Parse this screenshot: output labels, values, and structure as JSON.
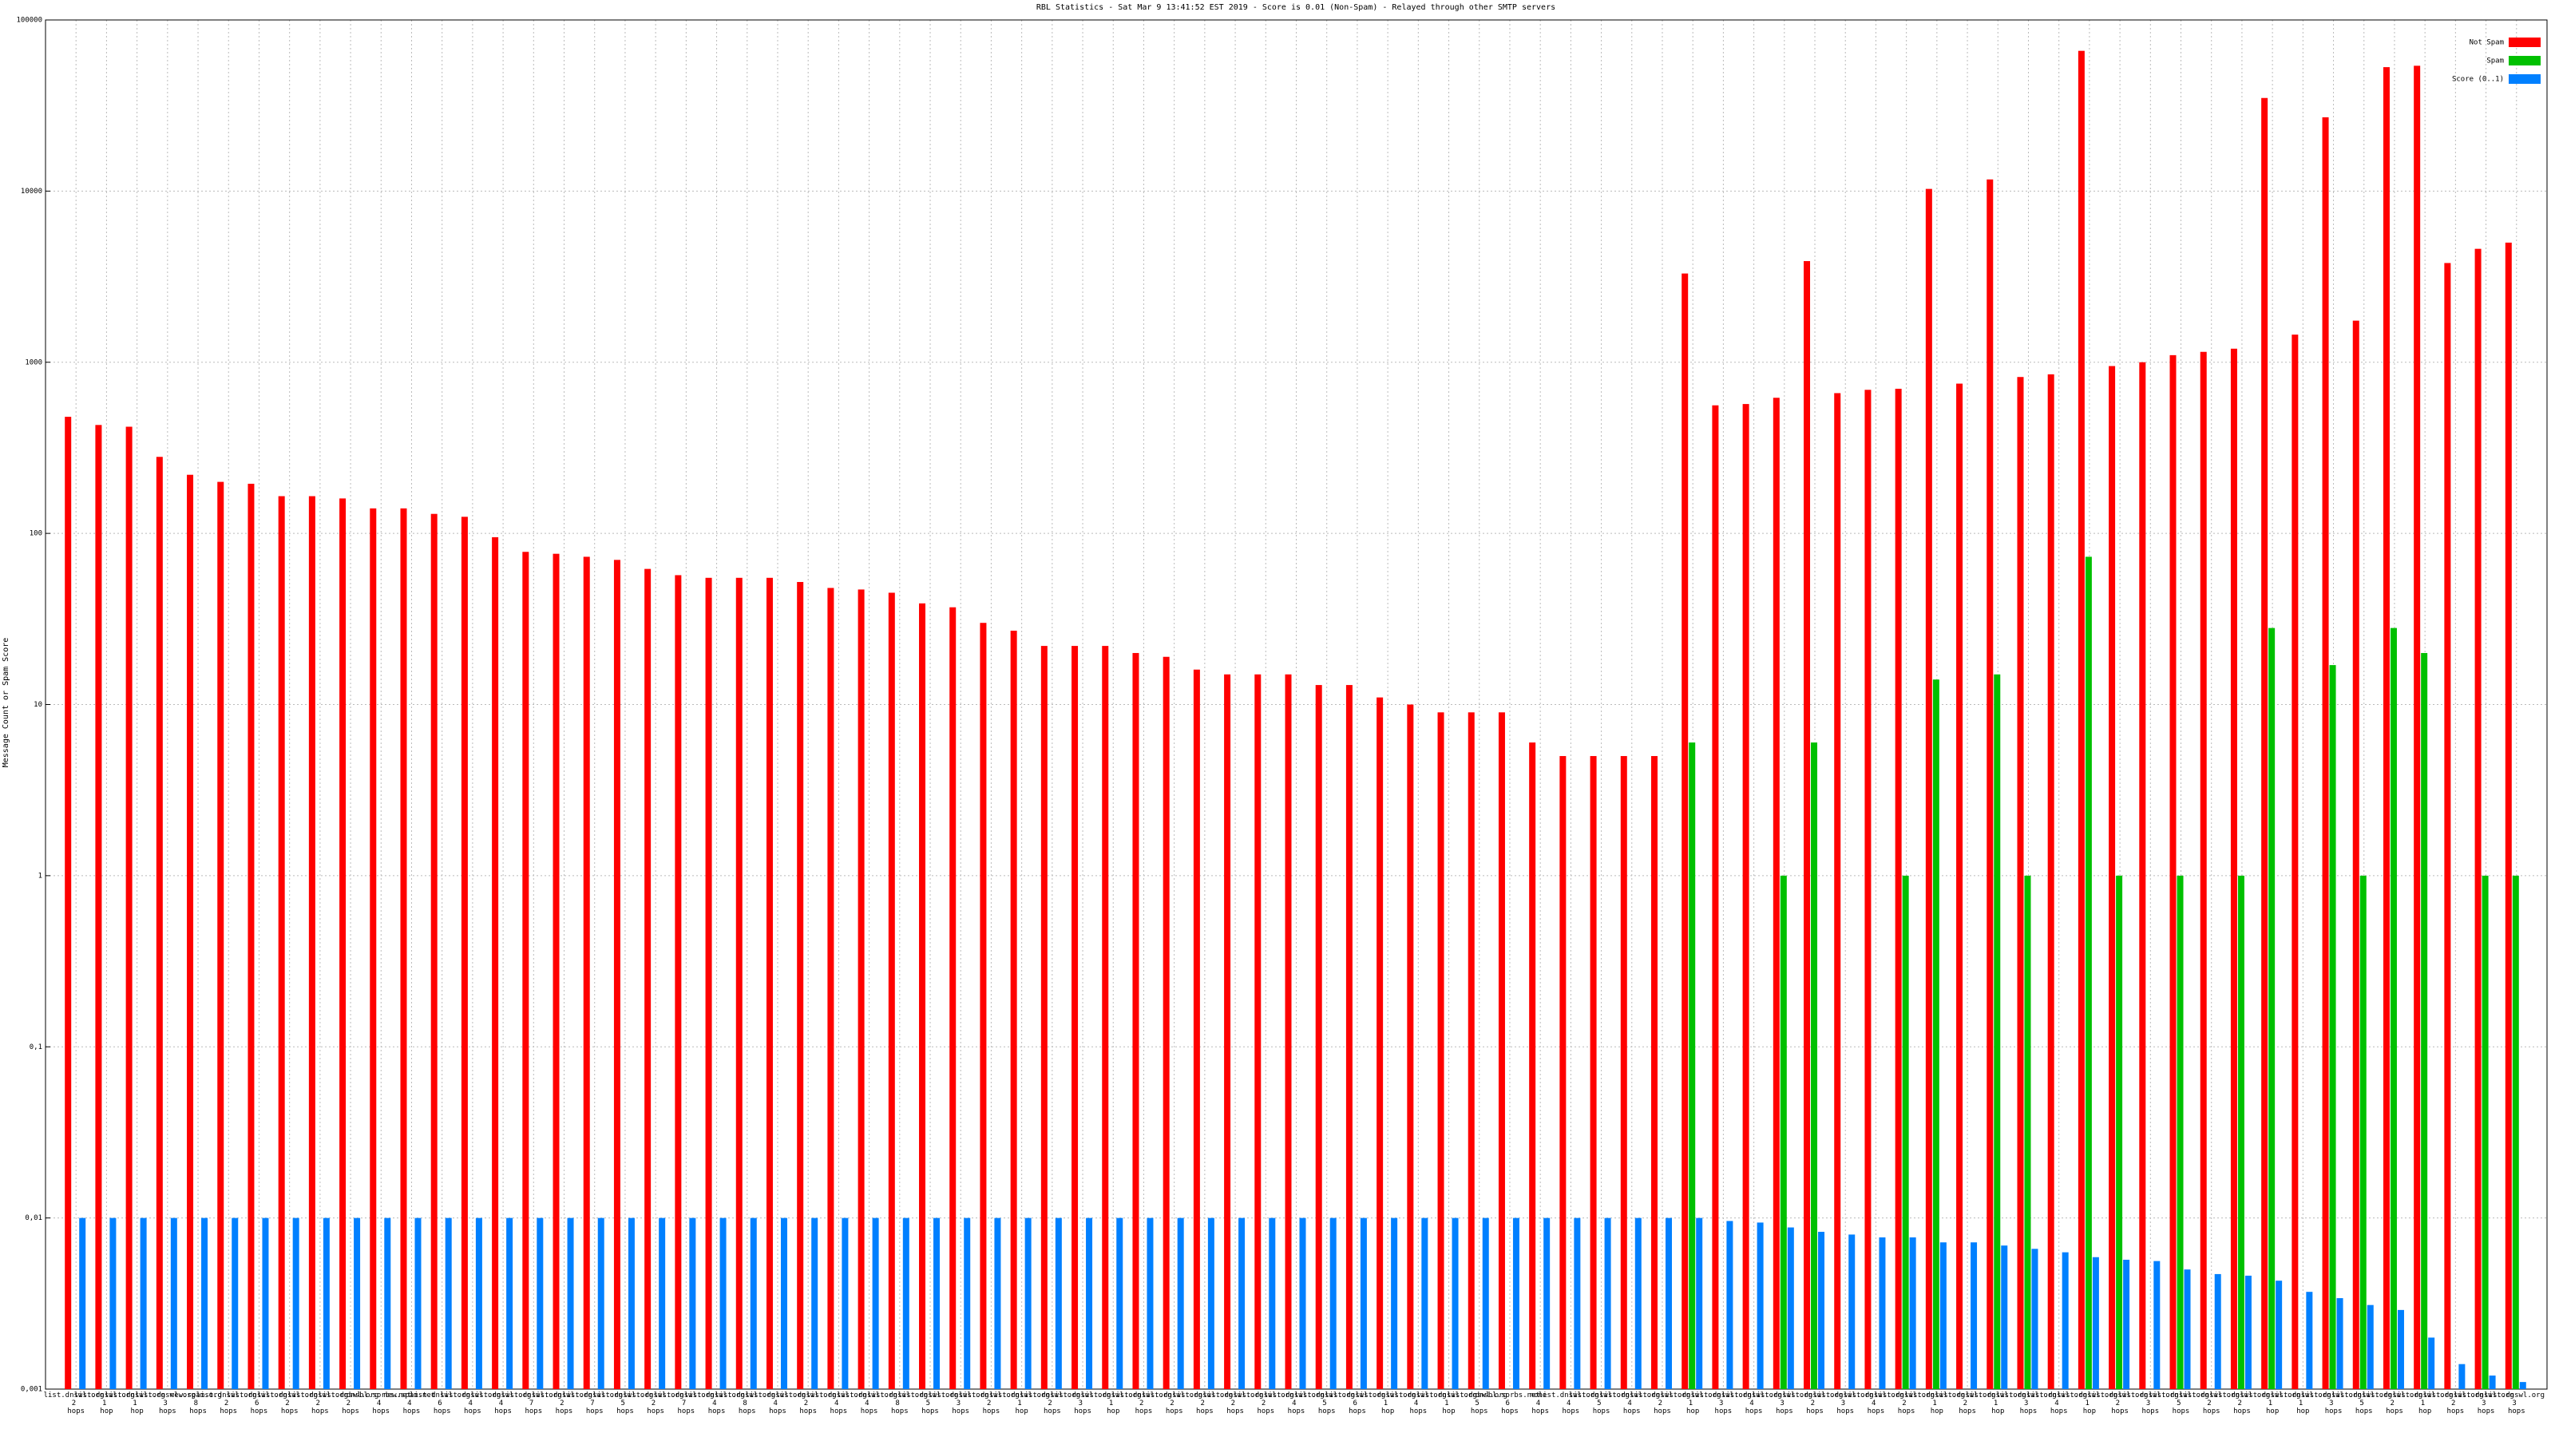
{
  "chart_data": {
    "type": "bar",
    "log_scale": true,
    "grid": true,
    "legend_position": "top-right",
    "title": "RBL Statistics - Sat Mar  9 13:41:52 EST 2019 - Score is 0.01 (Non-Spam) - Relayed through other SMTP servers",
    "y_label": "Message Count or Spam Score",
    "ylim": [
      0.001,
      100000
    ],
    "yticks": [
      {
        "value": 0.001,
        "label": "0,001"
      },
      {
        "value": 0.01,
        "label": "0,01"
      },
      {
        "value": 0.1,
        "label": "0,1"
      },
      1,
      10,
      100,
      1000,
      10000,
      100000
    ],
    "categories": [
      "list.dnswl.org 2 hops",
      "list.dnswl.org 1 hop",
      "list.dnswl.org 1 hop",
      "list.dnswl.org 3 hops",
      "new.spam.org 8 hops",
      "list.dnswl.org 2 hops",
      "list.dnswl.org 6 hops",
      "list.dnswl.org 2 hops",
      "list.dnswl.org 2 hops",
      "list.dnswl.org 2 hops",
      "dnsbl.sorbs.net 4 hops",
      "new.spam.net 4 hops",
      "list.dnswl.org 6 hops",
      "list.dnswl.org 4 hops",
      "list.dnswl.org 4 hops",
      "list.dnswl.org 7 hops",
      "list.dnswl.org 2 hops",
      "list.dnswl.org 7 hops",
      "list.dnswl.org 5 hops",
      "list.dnswl.org 2 hops",
      "list.dnswl.org 7 hops",
      "list.dnswl.org 4 hops",
      "list.dnswl.org 8 hops",
      "list.dnswl.org 4 hops",
      "list.dnswl.org 2 hops",
      "list.dnswl.org 4 hops",
      "list.dnswl.org 4 hops",
      "list.dnswl.org 8 hops",
      "list.dnswl.org 5 hops",
      "list.dnswl.org 3 hops",
      "list.dnswl.org 2 hops",
      "list.dnswl.org 1 hop",
      "list.dnswl.org 2 hops",
      "list.dnswl.org 3 hops",
      "list.dnswl.org 1 hop",
      "list.dnswl.org 2 hops",
      "list.dnswl.org 2 hops",
      "list.dnswl.org 2 hops",
      "list.dnswl.org 2 hops",
      "list.dnswl.org 2 hops",
      "list.dnswl.org 4 hops",
      "list.dnswl.org 5 hops",
      "list.dnswl.org 6 hops",
      "list.dnswl.org 1 hop",
      "list.dnswl.org 4 hops",
      "list.dnswl.org 1 hop",
      "list.dnswl.org 5 hops",
      "dnsbl.sorbs.net 6 hops",
      "none 4 hops",
      "list.dnswl.org 4 hops",
      "list.dnswl.org 5 hops",
      "list.dnswl.org 4 hops",
      "list.dnswl.org 2 hops",
      "list.dnswl.org 1 hop",
      "list.dnswl.org 3 hops",
      "list.dnswl.org 4 hops",
      "list.dnswl.org 3 hops",
      "list.dnswl.org 2 hops",
      "list.dnswl.org 3 hops",
      "list.dnswl.org 4 hops",
      "list.dnswl.org 2 hops",
      "list.dnswl.org 1 hop",
      "list.dnswl.org 2 hops",
      "list.dnswl.org 1 hop",
      "list.dnswl.org 3 hops",
      "list.dnswl.org 4 hops",
      "list.dnswl.org 1 hop",
      "list.dnswl.org 2 hops",
      "list.dnswl.org 3 hops",
      "list.dnswl.org 5 hops",
      "list.dnswl.org 2 hops",
      "list.dnswl.org 2 hops",
      "list.dnswl.org 1 hop",
      "list.dnswl.org 1 hop",
      "list.dnswl.org 3 hops",
      "list.dnswl.org 5 hops",
      "list.dnswl.org 2 hops",
      "list.dnswl.org 1 hop",
      "list.dnswl.org 2 hops",
      "list.dnswl.org 3 hops",
      "list.dnswl.org 3 hops"
    ],
    "series": [
      {
        "name": "Not Spam",
        "color": "#ff0000",
        "values": [
          480,
          430,
          420,
          280,
          220,
          200,
          195,
          165,
          165,
          160,
          140,
          140,
          130,
          125,
          95,
          78,
          76,
          73,
          70,
          62,
          57,
          55,
          55,
          55,
          52,
          48,
          47,
          45,
          39,
          37,
          30,
          27,
          22,
          22,
          22,
          20,
          19,
          16,
          15,
          15,
          15,
          13,
          13,
          11,
          10,
          9,
          9,
          9,
          6,
          5,
          5,
          5,
          5,
          3300,
          560,
          570,
          620,
          3900,
          660,
          690,
          700,
          10300,
          750,
          11700,
          820,
          850,
          66000,
          950,
          1000,
          1100,
          1150,
          1200,
          35000,
          1450,
          27000,
          1750,
          53000,
          54000,
          3800,
          4600,
          5000
        ]
      },
      {
        "name": "Spam",
        "color": "#00c000",
        "values": [
          null,
          null,
          null,
          null,
          null,
          null,
          null,
          null,
          null,
          null,
          null,
          null,
          null,
          null,
          null,
          null,
          null,
          null,
          null,
          null,
          null,
          null,
          null,
          null,
          null,
          null,
          null,
          null,
          null,
          null,
          null,
          null,
          null,
          null,
          null,
          null,
          null,
          null,
          null,
          null,
          null,
          null,
          null,
          null,
          null,
          null,
          null,
          null,
          null,
          null,
          null,
          null,
          null,
          6,
          null,
          null,
          1,
          6,
          null,
          null,
          1,
          14,
          null,
          15,
          1,
          null,
          73,
          1,
          null,
          1,
          null,
          1,
          28,
          null,
          17,
          1,
          28,
          20,
          null,
          1,
          1
        ]
      },
      {
        "name": "Score (0..1)",
        "color": "#0080ff",
        "values": [
          0.01,
          0.01,
          0.01,
          0.01,
          0.01,
          0.01,
          0.01,
          0.01,
          0.01,
          0.01,
          0.01,
          0.01,
          0.01,
          0.01,
          0.01,
          0.01,
          0.01,
          0.01,
          0.01,
          0.01,
          0.01,
          0.01,
          0.01,
          0.01,
          0.01,
          0.01,
          0.01,
          0.01,
          0.01,
          0.01,
          0.01,
          0.01,
          0.01,
          0.01,
          0.01,
          0.01,
          0.01,
          0.01,
          0.01,
          0.01,
          0.01,
          0.01,
          0.01,
          0.01,
          0.01,
          0.01,
          0.01,
          0.01,
          0.01,
          0.01,
          0.01,
          0.01,
          0.01,
          0.01,
          0.0096,
          0.0094,
          0.0088,
          0.0083,
          0.008,
          0.0077,
          0.0077,
          0.0072,
          0.0072,
          0.0069,
          0.0066,
          0.0063,
          0.0059,
          0.0057,
          0.0056,
          0.005,
          0.0047,
          0.0046,
          0.0043,
          0.0037,
          0.0034,
          0.0031,
          0.0029,
          0.002,
          0.0014,
          0.0012,
          0.0011
        ]
      }
    ]
  }
}
